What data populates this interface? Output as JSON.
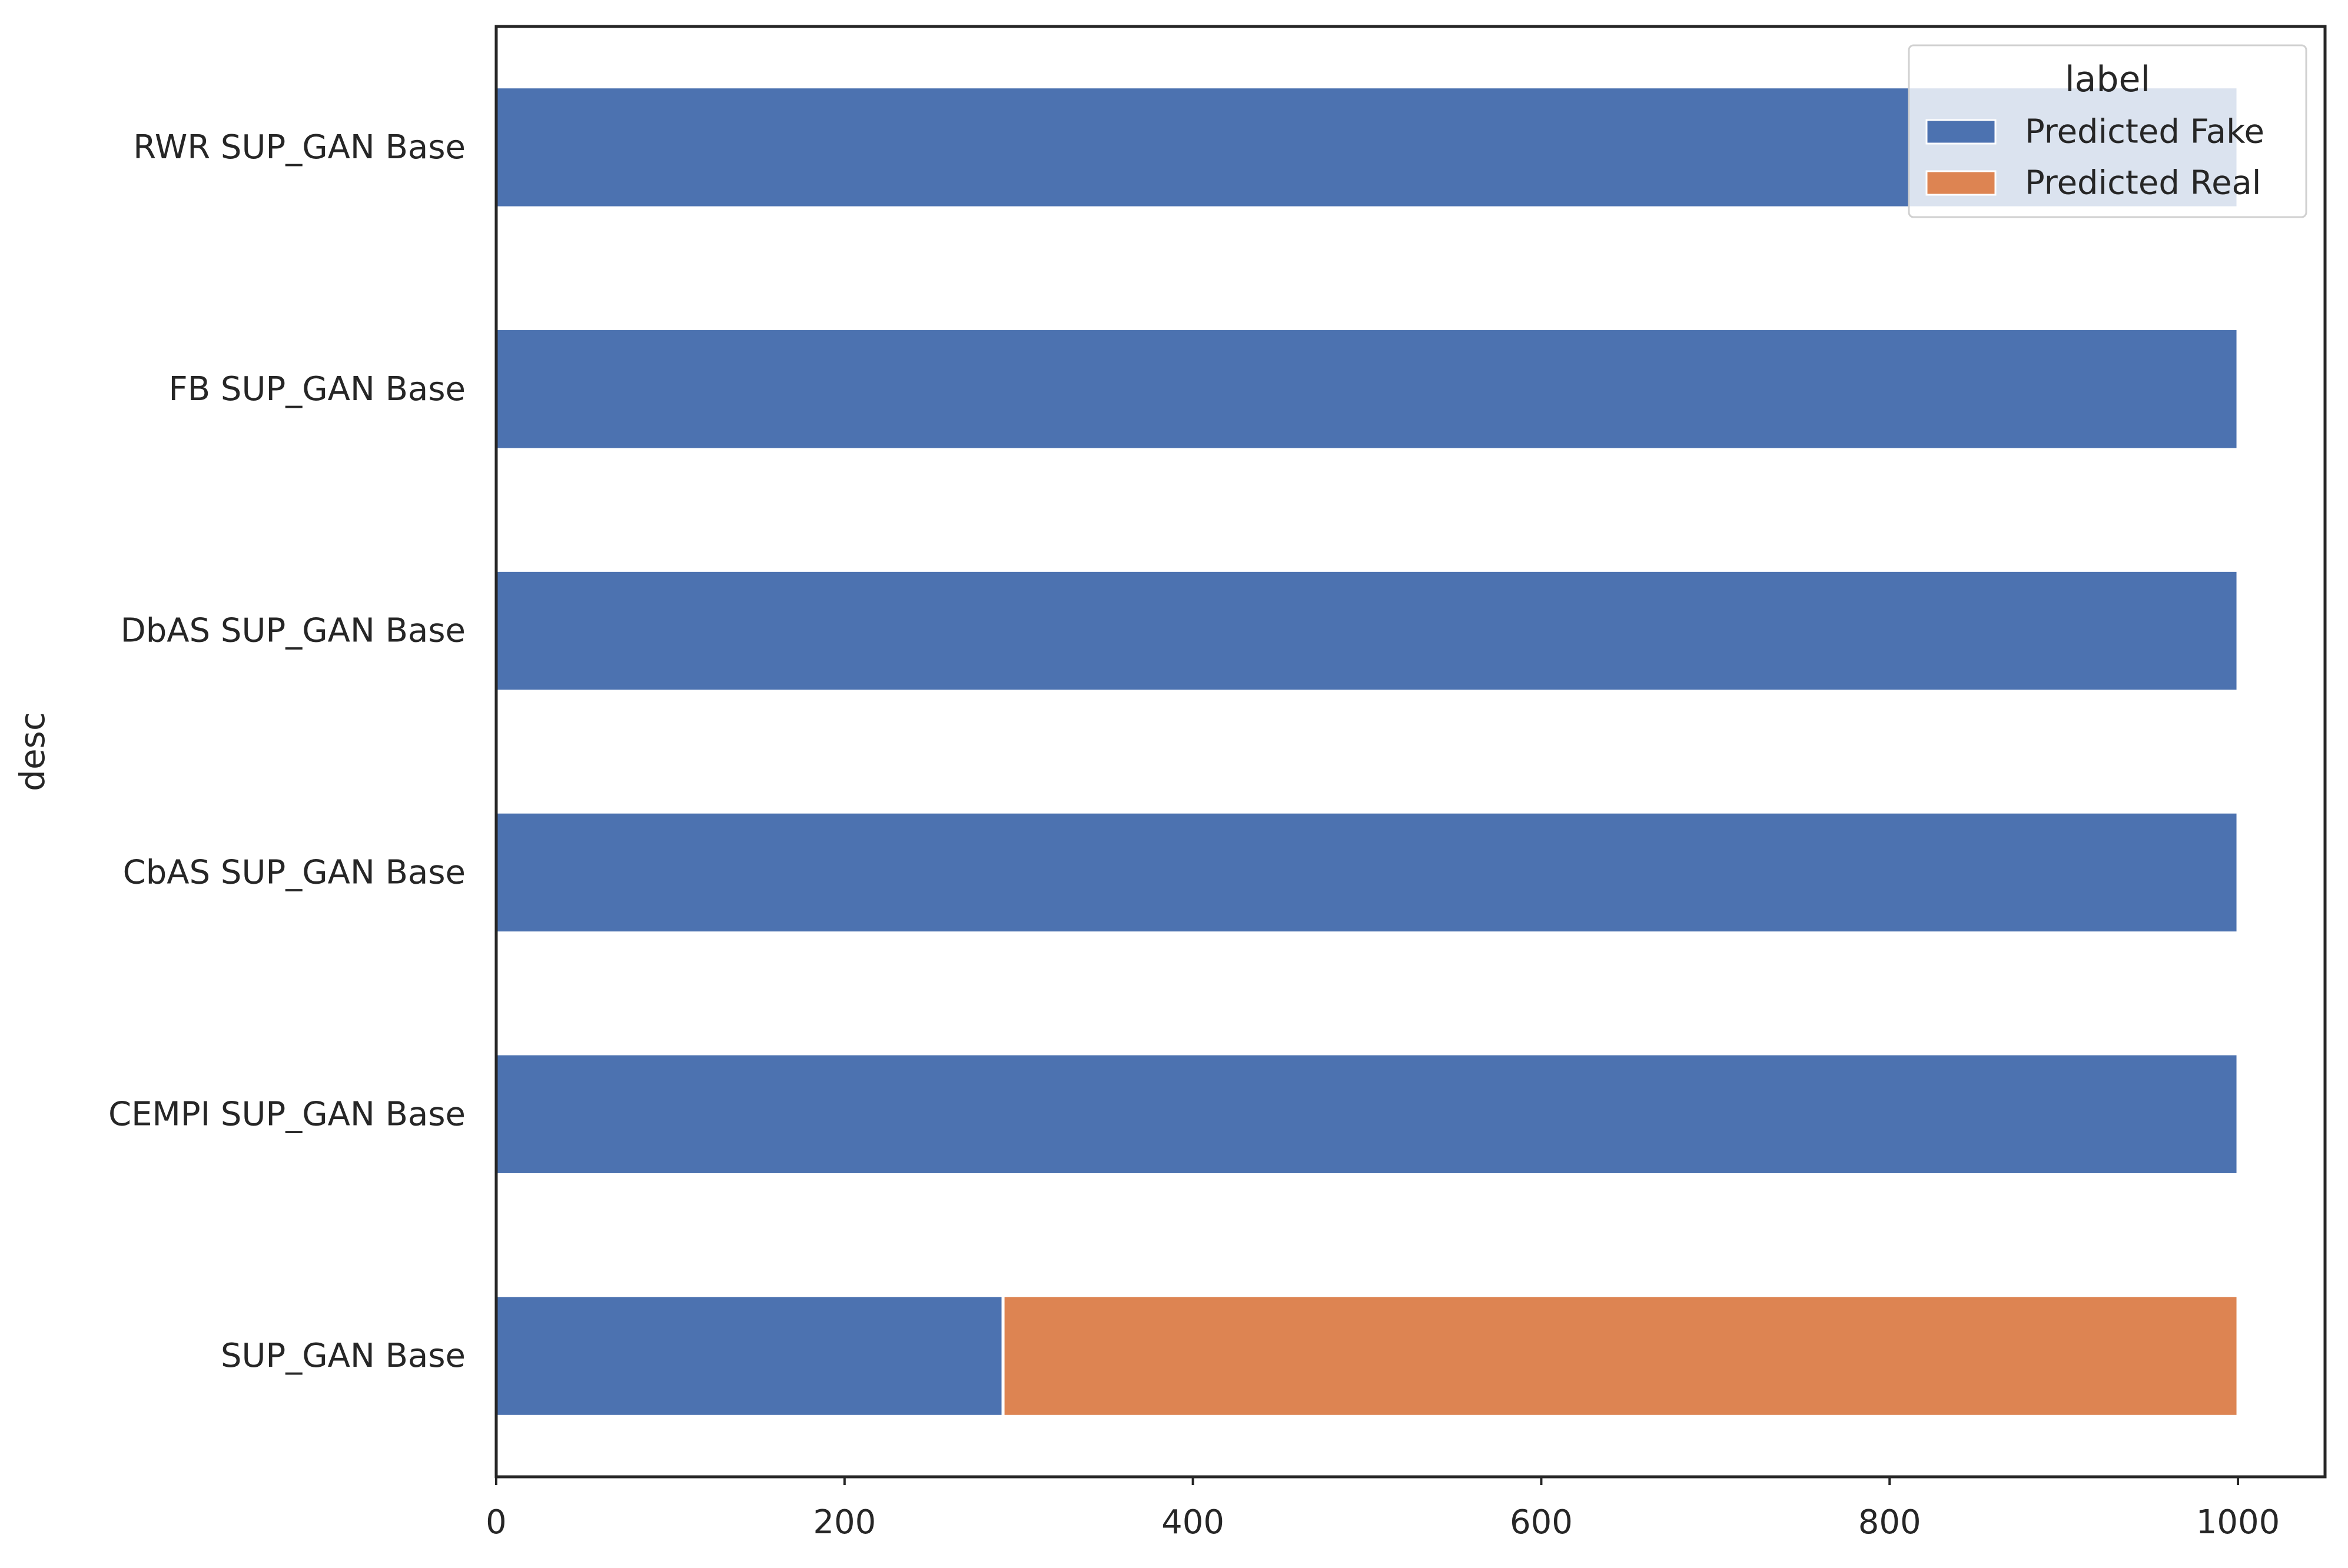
{
  "chart_data": {
    "type": "bar",
    "orientation": "horizontal",
    "stacked": true,
    "categories": [
      "RWR SUP_GAN Base",
      "FB SUP_GAN Base",
      "DbAS SUP_GAN Base",
      "CbAS SUP_GAN Base",
      "CEMPI SUP_GAN Base",
      "SUP_GAN Base"
    ],
    "series": [
      {
        "name": "Predicted Fake",
        "color": "#4c72b0",
        "values": [
          1000,
          1000,
          1000,
          1000,
          1000,
          291
        ]
      },
      {
        "name": "Predicted Real",
        "color": "#dd8452",
        "values": [
          0,
          0,
          0,
          0,
          0,
          709
        ]
      }
    ],
    "title": "",
    "xlabel": "",
    "ylabel": "desc",
    "xlim": [
      0,
      1050
    ],
    "xticks": [
      0,
      200,
      400,
      600,
      800,
      1000
    ],
    "xtick_labels": [
      "0",
      "200",
      "400",
      "600",
      "800",
      "1000"
    ],
    "grid": false,
    "legend": {
      "title": "label",
      "placement": "top-right"
    }
  }
}
